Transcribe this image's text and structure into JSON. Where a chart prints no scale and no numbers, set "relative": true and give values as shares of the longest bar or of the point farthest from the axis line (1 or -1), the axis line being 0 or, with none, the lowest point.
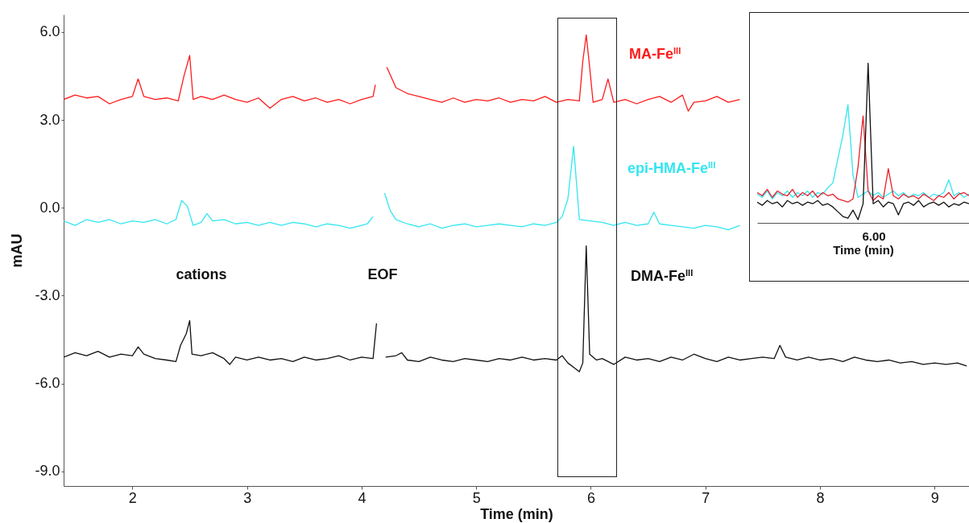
{
  "chart_data": [
    {
      "type": "line",
      "xlabel": "Time (min)",
      "ylabel": "mAU",
      "xlim": [
        1.4,
        9.3
      ],
      "ylim": [
        -9.5,
        6.6
      ],
      "xticks": [
        {
          "value": 2,
          "label": "2"
        },
        {
          "value": 3,
          "label": "3"
        },
        {
          "value": 4,
          "label": "4"
        },
        {
          "value": 5,
          "label": "5"
        },
        {
          "value": 6,
          "label": "6"
        },
        {
          "value": 7,
          "label": "7"
        },
        {
          "value": 8,
          "label": "8"
        },
        {
          "value": 9,
          "label": "9"
        }
      ],
      "yticks": [
        {
          "value": 6,
          "label": "6.0"
        },
        {
          "value": 3,
          "label": "3.0"
        },
        {
          "value": 0,
          "label": "0.0"
        },
        {
          "value": -3,
          "label": "-3.0"
        },
        {
          "value": -6,
          "label": "-6.0"
        },
        {
          "value": -9,
          "label": "-9.0"
        }
      ],
      "annotations": [
        "cations",
        "EOF"
      ],
      "series": [
        {
          "name": "MA-Fe$^{III}$",
          "color": "#ff1a1a",
          "x": [
            1.4,
            1.5,
            1.6,
            1.7,
            1.8,
            1.9,
            2.0,
            2.05,
            2.1,
            2.2,
            2.3,
            2.4,
            2.45,
            2.5,
            2.53,
            2.6,
            2.7,
            2.8,
            2.9,
            3.0,
            3.1,
            3.2,
            3.3,
            3.4,
            3.5,
            3.6,
            3.7,
            3.8,
            3.9,
            4.0,
            4.1,
            4.12,
            4.14,
            4.2,
            4.22,
            4.3,
            4.4,
            4.5,
            4.6,
            4.7,
            4.8,
            4.9,
            5.0,
            5.1,
            5.2,
            5.3,
            5.4,
            5.5,
            5.6,
            5.7,
            5.8,
            5.9,
            5.93,
            5.96,
            5.99,
            6.02,
            6.1,
            6.15,
            6.2,
            6.3,
            6.4,
            6.5,
            6.6,
            6.7,
            6.8,
            6.85,
            6.9,
            7.0,
            7.1,
            7.2,
            7.3
          ],
          "values": [
            3.7,
            3.85,
            3.75,
            3.8,
            3.55,
            3.7,
            3.8,
            4.4,
            3.8,
            3.7,
            3.75,
            3.65,
            4.5,
            5.2,
            3.7,
            3.8,
            3.7,
            3.85,
            3.7,
            3.6,
            3.75,
            3.4,
            3.7,
            3.8,
            3.65,
            3.75,
            3.6,
            3.7,
            3.55,
            3.7,
            3.8,
            4.2,
            null,
            null,
            4.8,
            4.1,
            3.9,
            3.8,
            3.7,
            3.6,
            3.75,
            3.6,
            3.7,
            3.65,
            3.75,
            3.6,
            3.7,
            3.65,
            3.8,
            3.6,
            3.7,
            3.65,
            5.0,
            5.9,
            4.8,
            3.6,
            3.7,
            4.4,
            3.6,
            3.7,
            3.55,
            3.7,
            3.8,
            3.6,
            3.85,
            3.3,
            3.6,
            3.65,
            3.8,
            3.6,
            3.7
          ]
        },
        {
          "name": "epi-HMA-Fe$^{III}$",
          "color": "#33e6f0",
          "x": [
            1.4,
            1.5,
            1.6,
            1.7,
            1.8,
            1.9,
            2.0,
            2.1,
            2.2,
            2.3,
            2.38,
            2.43,
            2.48,
            2.53,
            2.6,
            2.65,
            2.7,
            2.8,
            2.9,
            3.0,
            3.1,
            3.2,
            3.3,
            3.4,
            3.5,
            3.6,
            3.7,
            3.8,
            3.9,
            4.0,
            4.05,
            4.1,
            4.12,
            4.18,
            4.2,
            4.25,
            4.3,
            4.4,
            4.5,
            4.6,
            4.7,
            4.8,
            4.9,
            5.0,
            5.1,
            5.2,
            5.3,
            5.4,
            5.5,
            5.6,
            5.7,
            5.75,
            5.8,
            5.85,
            5.88,
            5.9,
            6.0,
            6.1,
            6.2,
            6.3,
            6.4,
            6.5,
            6.55,
            6.6,
            6.7,
            6.8,
            6.9,
            7.0,
            7.1,
            7.2,
            7.3
          ],
          "values": [
            -0.45,
            -0.6,
            -0.4,
            -0.5,
            -0.4,
            -0.55,
            -0.45,
            -0.5,
            -0.4,
            -0.55,
            -0.4,
            0.25,
            0.05,
            -0.6,
            -0.5,
            -0.2,
            -0.45,
            -0.4,
            -0.55,
            -0.5,
            -0.6,
            -0.5,
            -0.6,
            -0.5,
            -0.55,
            -0.65,
            -0.55,
            -0.6,
            -0.7,
            -0.6,
            -0.55,
            -0.3,
            null,
            null,
            0.5,
            -0.1,
            -0.4,
            -0.55,
            -0.65,
            -0.55,
            -0.7,
            -0.6,
            -0.55,
            -0.65,
            -0.6,
            -0.55,
            -0.6,
            -0.65,
            -0.55,
            -0.6,
            -0.5,
            -0.3,
            0.3,
            2.1,
            0.6,
            -0.4,
            -0.45,
            -0.5,
            -0.6,
            -0.5,
            -0.6,
            -0.55,
            -0.15,
            -0.55,
            -0.6,
            -0.65,
            -0.7,
            -0.6,
            -0.65,
            -0.75,
            -0.6
          ]
        },
        {
          "name": "DMA-Fe$^{III}$",
          "color": "#111111",
          "x": [
            1.4,
            1.5,
            1.6,
            1.7,
            1.8,
            1.9,
            2.0,
            2.05,
            2.1,
            2.2,
            2.3,
            2.38,
            2.42,
            2.47,
            2.5,
            2.52,
            2.6,
            2.7,
            2.8,
            2.85,
            2.9,
            3.0,
            3.1,
            3.2,
            3.3,
            3.4,
            3.5,
            3.6,
            3.7,
            3.8,
            3.9,
            4.0,
            4.1,
            4.13,
            4.15,
            4.19,
            4.21,
            4.3,
            4.35,
            4.4,
            4.5,
            4.6,
            4.7,
            4.8,
            4.9,
            5.0,
            5.1,
            5.2,
            5.3,
            5.4,
            5.5,
            5.6,
            5.7,
            5.75,
            5.8,
            5.85,
            5.9,
            5.93,
            5.96,
            5.99,
            6.05,
            6.1,
            6.2,
            6.3,
            6.4,
            6.5,
            6.6,
            6.7,
            6.8,
            6.9,
            7.0,
            7.1,
            7.2,
            7.3,
            7.4,
            7.5,
            7.6,
            7.65,
            7.7,
            7.8,
            7.9,
            8.0,
            8.1,
            8.2,
            8.3,
            8.4,
            8.5,
            8.6,
            8.7,
            8.8,
            8.9,
            9.0,
            9.1,
            9.2,
            9.28
          ],
          "values": [
            -5.1,
            -4.95,
            -5.05,
            -4.9,
            -5.1,
            -5.0,
            -5.05,
            -4.75,
            -5.0,
            -5.15,
            -5.2,
            -5.25,
            -4.7,
            -4.3,
            -3.85,
            -5.0,
            -5.05,
            -4.95,
            -5.15,
            -5.35,
            -5.1,
            -5.2,
            -5.1,
            -5.2,
            -5.15,
            -5.25,
            -5.1,
            -5.2,
            -5.15,
            -5.05,
            -5.2,
            -5.1,
            -5.15,
            -3.95,
            null,
            null,
            -5.1,
            -5.05,
            -4.95,
            -5.2,
            -5.25,
            -5.1,
            -5.2,
            -5.25,
            -5.15,
            -5.2,
            -5.25,
            -5.15,
            -5.2,
            -5.1,
            -5.2,
            -5.15,
            -5.2,
            -5.05,
            -5.3,
            -5.45,
            -5.6,
            -5.3,
            -1.3,
            -5.0,
            -5.2,
            -5.15,
            -5.35,
            -5.1,
            -5.2,
            -5.15,
            -5.25,
            -5.1,
            -5.2,
            -5.0,
            -5.15,
            -5.25,
            -5.1,
            -5.2,
            -5.15,
            -5.1,
            -5.15,
            -4.7,
            -5.1,
            -5.2,
            -5.1,
            -5.2,
            -5.15,
            -5.25,
            -5.1,
            -5.2,
            -5.25,
            -5.2,
            -5.3,
            -5.25,
            -5.35,
            -5.3,
            -5.35,
            -5.3,
            -5.4
          ]
        }
      ]
    },
    {
      "type": "line",
      "relative": true,
      "xlabel": "Time (min)",
      "annotations": [
        "6.00"
      ],
      "categories": [
        null,
        null,
        null,
        null,
        null,
        null,
        null,
        null,
        null,
        null,
        null,
        null,
        null,
        null,
        null,
        null,
        null,
        null,
        null,
        null,
        null,
        null,
        null,
        null,
        null,
        null,
        null,
        null,
        null,
        null,
        null,
        null,
        null,
        null,
        null,
        null,
        null,
        null,
        null,
        null,
        null,
        null,
        null
      ],
      "series": [
        {
          "color": "#33e6f0",
          "values": [
            0.18,
            0.16,
            0.2,
            0.15,
            0.19,
            0.17,
            0.2,
            0.16,
            0.19,
            0.17,
            0.2,
            0.16,
            0.19,
            0.18,
            0.22,
            0.25,
            0.4,
            0.55,
            0.74,
            0.3,
            0.16,
            0.18,
            0.2,
            0.17,
            0.19,
            0.16,
            0.18,
            0.2,
            0.17,
            0.19,
            0.16,
            0.18,
            0.17,
            0.19,
            0.16,
            0.18,
            0.17,
            0.19,
            0.27,
            0.17,
            0.19,
            0.16,
            0.18
          ]
        },
        {
          "color": "#e8202a",
          "values": [
            0.19,
            0.17,
            0.21,
            0.16,
            0.2,
            0.18,
            0.17,
            0.21,
            0.16,
            0.19,
            0.17,
            0.2,
            0.16,
            0.19,
            0.17,
            0.18,
            0.15,
            0.14,
            0.13,
            0.15,
            0.35,
            0.67,
            0.2,
            0.14,
            0.17,
            0.15,
            0.34,
            0.17,
            0.15,
            0.18,
            0.16,
            0.17,
            0.15,
            0.18,
            0.16,
            0.14,
            0.17,
            0.16,
            0.19,
            0.15,
            0.18,
            0.19,
            0.17
          ]
        },
        {
          "color": "#111111",
          "values": [
            0.13,
            0.11,
            0.14,
            0.12,
            0.13,
            0.1,
            0.14,
            0.12,
            0.13,
            0.11,
            0.13,
            0.12,
            0.14,
            0.11,
            0.12,
            0.1,
            0.07,
            0.04,
            0.03,
            0.08,
            0.02,
            0.12,
            1,
            0.12,
            0.14,
            0.1,
            0.13,
            0.12,
            0.05,
            0.12,
            0.13,
            0.11,
            0.14,
            0.1,
            0.12,
            0.13,
            0.11,
            0.13,
            0.1,
            0.12,
            0.11,
            0.13,
            0.12
          ]
        }
      ]
    }
  ]
}
